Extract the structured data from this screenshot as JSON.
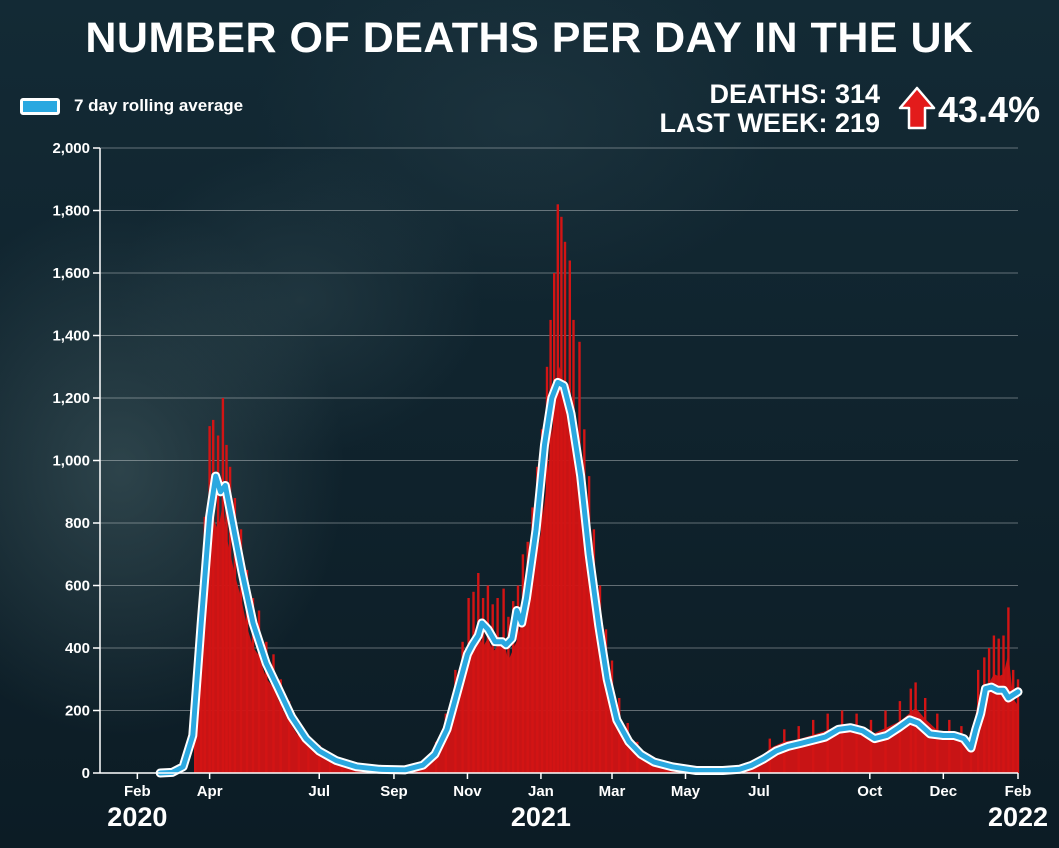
{
  "title": "NUMBER OF DEATHS PER DAY IN THE UK",
  "legend": {
    "label": "7 day rolling average"
  },
  "stats": {
    "deaths_label": "DEATHS: 314",
    "last_week_label": "LAST WEEK: 219",
    "change": "43.4%"
  },
  "colors": {
    "bars": "#d31414",
    "average_line": "#2aa8e0",
    "outline": "#ffffff",
    "arrow": "#e31b1b"
  },
  "chart_data": {
    "type": "bar",
    "ylim": [
      0,
      2000
    ],
    "y_ticks": [
      "0",
      "200",
      "400",
      "600",
      "800",
      "1,000",
      "1,200",
      "1,400",
      "1,600",
      "1,800",
      "2,000"
    ],
    "y_tick_values": [
      0,
      200,
      400,
      600,
      800,
      1000,
      1200,
      1400,
      1600,
      1800,
      2000
    ],
    "x_range": [
      "2020-01-01",
      "2022-02-01"
    ],
    "month_ticks": [
      {
        "label": "Feb",
        "date": "2020-02-01"
      },
      {
        "label": "Apr",
        "date": "2020-04-01"
      },
      {
        "label": "Jul",
        "date": "2020-07-01"
      },
      {
        "label": "Sep",
        "date": "2020-09-01"
      },
      {
        "label": "Nov",
        "date": "2020-11-01"
      },
      {
        "label": "Jan",
        "date": "2021-01-01"
      },
      {
        "label": "Mar",
        "date": "2021-03-01"
      },
      {
        "label": "May",
        "date": "2021-05-01"
      },
      {
        "label": "Jul",
        "date": "2021-07-01"
      },
      {
        "label": "Oct",
        "date": "2021-10-01"
      },
      {
        "label": "Dec",
        "date": "2021-12-01"
      },
      {
        "label": "Feb",
        "date": "2022-02-01"
      }
    ],
    "year_labels": [
      {
        "label": "2020",
        "date": "2020-02-01"
      },
      {
        "label": "2021",
        "date": "2021-01-01"
      },
      {
        "label": "2022",
        "date": "2022-02-01"
      }
    ],
    "series": [
      {
        "name": "7 day rolling average",
        "style": "line",
        "points": [
          [
            "2020-02-20",
            0
          ],
          [
            "2020-03-01",
            2
          ],
          [
            "2020-03-10",
            20
          ],
          [
            "2020-03-18",
            120
          ],
          [
            "2020-03-25",
            480
          ],
          [
            "2020-04-01",
            820
          ],
          [
            "2020-04-06",
            950
          ],
          [
            "2020-04-10",
            900
          ],
          [
            "2020-04-14",
            920
          ],
          [
            "2020-04-20",
            800
          ],
          [
            "2020-04-28",
            640
          ],
          [
            "2020-05-07",
            480
          ],
          [
            "2020-05-18",
            350
          ],
          [
            "2020-05-28",
            270
          ],
          [
            "2020-06-08",
            180
          ],
          [
            "2020-06-20",
            110
          ],
          [
            "2020-07-01",
            70
          ],
          [
            "2020-07-15",
            40
          ],
          [
            "2020-08-01",
            20
          ],
          [
            "2020-08-20",
            12
          ],
          [
            "2020-09-10",
            10
          ],
          [
            "2020-09-25",
            25
          ],
          [
            "2020-10-05",
            60
          ],
          [
            "2020-10-15",
            140
          ],
          [
            "2020-10-25",
            280
          ],
          [
            "2020-11-01",
            380
          ],
          [
            "2020-11-05",
            410
          ],
          [
            "2020-11-10",
            440
          ],
          [
            "2020-11-13",
            480
          ],
          [
            "2020-11-18",
            460
          ],
          [
            "2020-11-24",
            420
          ],
          [
            "2020-11-30",
            420
          ],
          [
            "2020-12-03",
            410
          ],
          [
            "2020-12-08",
            430
          ],
          [
            "2020-12-12",
            520
          ],
          [
            "2020-12-16",
            480
          ],
          [
            "2020-12-20",
            560
          ],
          [
            "2020-12-28",
            780
          ],
          [
            "2021-01-04",
            1050
          ],
          [
            "2021-01-10",
            1200
          ],
          [
            "2021-01-15",
            1250
          ],
          [
            "2021-01-20",
            1240
          ],
          [
            "2021-01-26",
            1150
          ],
          [
            "2021-02-03",
            950
          ],
          [
            "2021-02-10",
            700
          ],
          [
            "2021-02-18",
            470
          ],
          [
            "2021-02-25",
            300
          ],
          [
            "2021-03-05",
            170
          ],
          [
            "2021-03-15",
            100
          ],
          [
            "2021-03-25",
            60
          ],
          [
            "2021-04-05",
            35
          ],
          [
            "2021-04-20",
            20
          ],
          [
            "2021-05-10",
            8
          ],
          [
            "2021-06-01",
            8
          ],
          [
            "2021-06-15",
            12
          ],
          [
            "2021-06-25",
            25
          ],
          [
            "2021-07-05",
            45
          ],
          [
            "2021-07-15",
            70
          ],
          [
            "2021-07-25",
            85
          ],
          [
            "2021-08-05",
            95
          ],
          [
            "2021-08-15",
            105
          ],
          [
            "2021-08-25",
            115
          ],
          [
            "2021-09-05",
            140
          ],
          [
            "2021-09-15",
            145
          ],
          [
            "2021-09-25",
            135
          ],
          [
            "2021-10-05",
            110
          ],
          [
            "2021-10-15",
            120
          ],
          [
            "2021-10-25",
            145
          ],
          [
            "2021-11-03",
            170
          ],
          [
            "2021-11-10",
            160
          ],
          [
            "2021-11-20",
            125
          ],
          [
            "2021-12-01",
            120
          ],
          [
            "2021-12-10",
            120
          ],
          [
            "2021-12-18",
            110
          ],
          [
            "2021-12-24",
            80
          ],
          [
            "2021-12-28",
            140
          ],
          [
            "2022-01-01",
            190
          ],
          [
            "2022-01-05",
            270
          ],
          [
            "2022-01-10",
            275
          ],
          [
            "2022-01-15",
            265
          ],
          [
            "2022-01-20",
            265
          ],
          [
            "2022-01-24",
            240
          ],
          [
            "2022-01-28",
            250
          ],
          [
            "2022-02-01",
            260
          ]
        ]
      },
      {
        "name": "Daily deaths",
        "style": "bar",
        "points": [
          [
            "2020-03-20",
            180
          ],
          [
            "2020-03-25",
            560
          ],
          [
            "2020-03-28",
            820
          ],
          [
            "2020-04-01",
            1110
          ],
          [
            "2020-04-04",
            1130
          ],
          [
            "2020-04-08",
            1080
          ],
          [
            "2020-04-12",
            1200
          ],
          [
            "2020-04-15",
            1050
          ],
          [
            "2020-04-18",
            980
          ],
          [
            "2020-04-22",
            880
          ],
          [
            "2020-04-27",
            780
          ],
          [
            "2020-05-02",
            650
          ],
          [
            "2020-05-07",
            560
          ],
          [
            "2020-05-12",
            520
          ],
          [
            "2020-05-18",
            420
          ],
          [
            "2020-05-24",
            380
          ],
          [
            "2020-05-30",
            300
          ],
          [
            "2020-06-06",
            230
          ],
          [
            "2020-06-14",
            160
          ],
          [
            "2020-06-22",
            120
          ],
          [
            "2020-07-01",
            90
          ],
          [
            "2020-07-10",
            60
          ],
          [
            "2020-07-20",
            40
          ],
          [
            "2020-08-01",
            30
          ],
          [
            "2020-08-15",
            20
          ],
          [
            "2020-09-01",
            15
          ],
          [
            "2020-09-15",
            25
          ],
          [
            "2020-09-28",
            50
          ],
          [
            "2020-10-06",
            100
          ],
          [
            "2020-10-14",
            190
          ],
          [
            "2020-10-22",
            330
          ],
          [
            "2020-10-28",
            420
          ],
          [
            "2020-11-02",
            560
          ],
          [
            "2020-11-06",
            580
          ],
          [
            "2020-11-10",
            640
          ],
          [
            "2020-11-14",
            560
          ],
          [
            "2020-11-18",
            600
          ],
          [
            "2020-11-22",
            540
          ],
          [
            "2020-11-26",
            560
          ],
          [
            "2020-12-01",
            590
          ],
          [
            "2020-12-05",
            500
          ],
          [
            "2020-12-09",
            550
          ],
          [
            "2020-12-13",
            600
          ],
          [
            "2020-12-17",
            700
          ],
          [
            "2020-12-21",
            740
          ],
          [
            "2020-12-25",
            850
          ],
          [
            "2020-12-29",
            980
          ],
          [
            "2021-01-02",
            1100
          ],
          [
            "2021-01-06",
            1300
          ],
          [
            "2021-01-09",
            1450
          ],
          [
            "2021-01-12",
            1600
          ],
          [
            "2021-01-15",
            1820
          ],
          [
            "2021-01-18",
            1780
          ],
          [
            "2021-01-21",
            1700
          ],
          [
            "2021-01-25",
            1640
          ],
          [
            "2021-01-28",
            1450
          ],
          [
            "2021-02-02",
            1380
          ],
          [
            "2021-02-06",
            1100
          ],
          [
            "2021-02-10",
            950
          ],
          [
            "2021-02-14",
            780
          ],
          [
            "2021-02-19",
            600
          ],
          [
            "2021-02-24",
            460
          ],
          [
            "2021-03-01",
            360
          ],
          [
            "2021-03-07",
            240
          ],
          [
            "2021-03-14",
            160
          ],
          [
            "2021-03-22",
            100
          ],
          [
            "2021-04-01",
            60
          ],
          [
            "2021-04-15",
            35
          ],
          [
            "2021-05-01",
            20
          ],
          [
            "2021-05-20",
            15
          ],
          [
            "2021-06-10",
            18
          ],
          [
            "2021-06-28",
            40
          ],
          [
            "2021-07-10",
            110
          ],
          [
            "2021-07-22",
            140
          ],
          [
            "2021-08-03",
            150
          ],
          [
            "2021-08-15",
            170
          ],
          [
            "2021-08-27",
            190
          ],
          [
            "2021-09-08",
            200
          ],
          [
            "2021-09-20",
            190
          ],
          [
            "2021-10-02",
            170
          ],
          [
            "2021-10-14",
            200
          ],
          [
            "2021-10-26",
            230
          ],
          [
            "2021-11-04",
            270
          ],
          [
            "2021-11-08",
            290
          ],
          [
            "2021-11-16",
            240
          ],
          [
            "2021-11-26",
            190
          ],
          [
            "2021-12-06",
            170
          ],
          [
            "2021-12-16",
            150
          ],
          [
            "2021-12-24",
            130
          ],
          [
            "2021-12-30",
            330
          ],
          [
            "2022-01-04",
            370
          ],
          [
            "2022-01-08",
            400
          ],
          [
            "2022-01-12",
            440
          ],
          [
            "2022-01-16",
            430
          ],
          [
            "2022-01-20",
            440
          ],
          [
            "2022-01-24",
            530
          ],
          [
            "2022-01-28",
            330
          ],
          [
            "2022-02-01",
            300
          ]
        ]
      }
    ]
  }
}
